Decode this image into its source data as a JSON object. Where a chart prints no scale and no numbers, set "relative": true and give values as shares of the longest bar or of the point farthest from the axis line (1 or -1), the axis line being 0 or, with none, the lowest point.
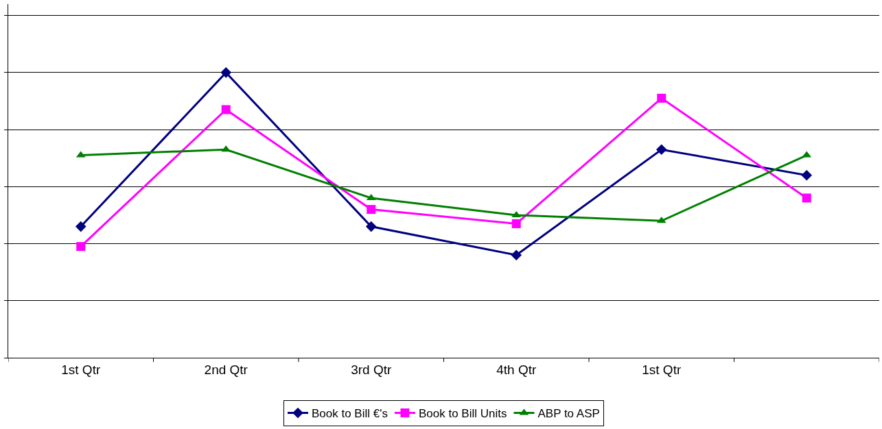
{
  "chart_data": {
    "type": "line",
    "relative": true,
    "categories": [
      "1st Qtr",
      "2nd Qtr",
      "3rd Qtr",
      "4th Qtr",
      "1st Qtr",
      null
    ],
    "series": [
      {
        "name": "Book to Bill €'s",
        "color": "#000080",
        "marker": "diamond",
        "values": [
          0.46,
          1.0,
          0.46,
          0.36,
          0.73,
          0.64
        ]
      },
      {
        "name": "Book to Bill Units",
        "color": "#ff00ff",
        "marker": "square",
        "values": [
          0.39,
          0.87,
          0.52,
          0.47,
          0.91,
          0.56
        ]
      },
      {
        "name": "ABP to ASP",
        "color": "#008000",
        "marker": "triangle",
        "values": [
          0.71,
          0.73,
          0.56,
          0.5,
          0.48,
          0.71
        ]
      }
    ],
    "grid": "y",
    "legend": "bottom",
    "line_style": "solid"
  }
}
